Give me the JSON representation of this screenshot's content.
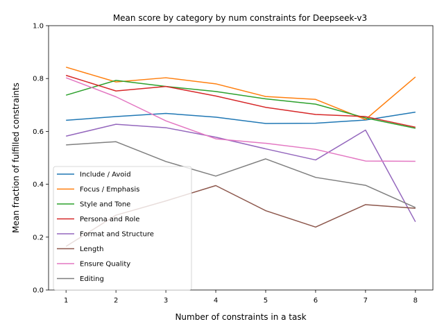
{
  "chart_data": {
    "type": "line",
    "title": "Mean score by category by num constraints for Deepseek-v3",
    "xlabel": "Number of constraints in a task",
    "ylabel": "Mean fraction of fulfilled constraints",
    "x": [
      1,
      2,
      3,
      4,
      5,
      6,
      7,
      8
    ],
    "xlim": [
      0.65,
      8.35
    ],
    "ylim": [
      0.0,
      1.0
    ],
    "xticks": [
      1,
      2,
      3,
      4,
      5,
      6,
      7,
      8
    ],
    "yticks": [
      0.0,
      0.2,
      0.4,
      0.6,
      0.8,
      1.0
    ],
    "ytick_labels": [
      "0.0",
      "0.2",
      "0.4",
      "0.6",
      "0.8",
      "1.0"
    ],
    "grid": false,
    "legend_position": "lower-left",
    "series": [
      {
        "name": "Include / Avoid",
        "color": "#1f77b4",
        "values": [
          0.642,
          0.656,
          0.668,
          0.654,
          0.63,
          0.631,
          0.643,
          0.673
        ]
      },
      {
        "name": "Focus / Emphasis",
        "color": "#ff7f0e",
        "values": [
          0.843,
          0.787,
          0.803,
          0.78,
          0.732,
          0.721,
          0.645,
          0.806
        ]
      },
      {
        "name": "Style and Tone",
        "color": "#2ca02c",
        "values": [
          0.737,
          0.793,
          0.77,
          0.751,
          0.723,
          0.703,
          0.651,
          0.612
        ]
      },
      {
        "name": "Persona and Role",
        "color": "#d62728",
        "values": [
          0.812,
          0.753,
          0.77,
          0.734,
          0.691,
          0.664,
          0.656,
          0.616
        ]
      },
      {
        "name": "Format and Structure",
        "color": "#9467bd",
        "values": [
          0.582,
          0.627,
          0.614,
          0.578,
          0.534,
          0.492,
          0.605,
          0.258
        ]
      },
      {
        "name": "Length",
        "color": "#8c564b",
        "values": [
          0.165,
          0.283,
          0.337,
          0.395,
          0.3,
          0.238,
          0.323,
          0.309
        ]
      },
      {
        "name": "Ensure Quality",
        "color": "#e377c2",
        "values": [
          0.803,
          0.731,
          0.64,
          0.572,
          0.555,
          0.532,
          0.488,
          0.487
        ]
      },
      {
        "name": "Editing",
        "color": "#7f7f7f",
        "values": [
          0.549,
          0.561,
          0.486,
          0.431,
          0.496,
          0.426,
          0.396,
          0.312
        ]
      }
    ]
  }
}
